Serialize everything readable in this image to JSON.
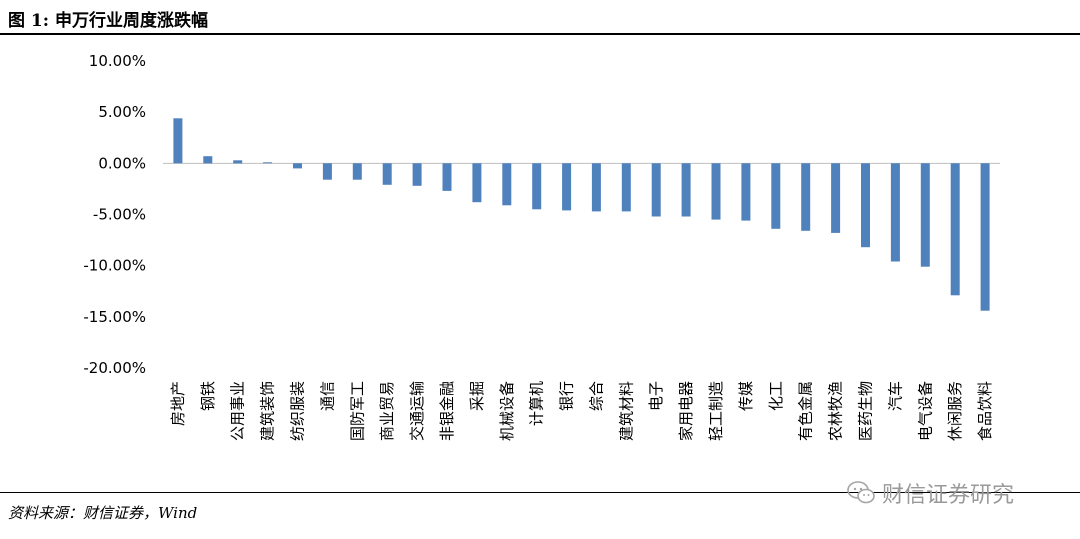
{
  "figure": {
    "title": "图 1:  申万行业周度涨跌幅",
    "source": "资料来源：财信证券，Wind",
    "watermark": "财信证券研究"
  },
  "colors": {
    "bar": "#4f81bd",
    "axis": "#bfbfbf",
    "text": "#000000"
  },
  "chart_data": {
    "type": "bar",
    "title": "",
    "xlabel": "",
    "ylabel": "",
    "ylim": [
      -20,
      10
    ],
    "yticks": [
      "10.00%",
      "5.00%",
      "0.00%",
      "-5.00%",
      "-10.00%",
      "-15.00%",
      "-20.00%"
    ],
    "ytick_values": [
      10,
      5,
      0,
      -5,
      -10,
      -15,
      -20
    ],
    "grid": false,
    "legend": "none",
    "categories": [
      "房地产",
      "钢铁",
      "公用事业",
      "建筑装饰",
      "纺织服装",
      "通信",
      "国防军工",
      "商业贸易",
      "交通运输",
      "非银金融",
      "采掘",
      "机械设备",
      "计算机",
      "银行",
      "综合",
      "建筑材料",
      "电子",
      "家用电器",
      "轻工制造",
      "传媒",
      "化工",
      "有色金属",
      "农林牧渔",
      "医药生物",
      "汽车",
      "电气设备",
      "休闲服务",
      "食品饮料"
    ],
    "values": [
      4.4,
      0.7,
      0.3,
      0.1,
      -0.5,
      -1.6,
      -1.6,
      -2.1,
      -2.2,
      -2.7,
      -3.8,
      -4.1,
      -4.5,
      -4.6,
      -4.7,
      -4.7,
      -5.2,
      -5.2,
      -5.5,
      -5.6,
      -6.4,
      -6.6,
      -6.8,
      -8.2,
      -9.6,
      -10.1,
      -12.9,
      -14.4
    ]
  }
}
